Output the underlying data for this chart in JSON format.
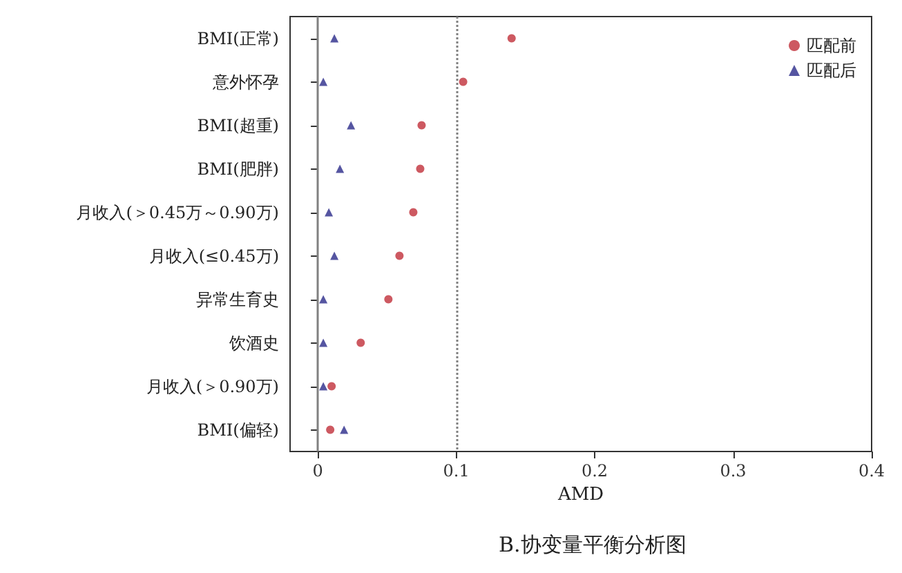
{
  "chart_data": {
    "type": "scatter",
    "title": "B.协变量平衡分析图",
    "xlabel": "AMD",
    "categories": [
      "BMI(正常)",
      "意外怀孕",
      "BMI(超重)",
      "BMI(肥胖)",
      "月收入(＞0.45万～0.90万)",
      "月收入(≤0.45万)",
      "异常生育史",
      "饮酒史",
      "月收入(＞0.90万)",
      "BMI(偏轻)"
    ],
    "series": [
      {
        "name": "匹配前",
        "color": "#c0303a",
        "marker": "circle",
        "values": [
          0.14,
          0.105,
          0.075,
          0.074,
          0.069,
          0.059,
          0.051,
          0.031,
          0.01,
          0.009
        ]
      },
      {
        "name": "匹配后",
        "color": "#2a2a8a",
        "marker": "triangle",
        "values": [
          0.012,
          0.004,
          0.024,
          0.016,
          0.008,
          0.012,
          0.004,
          0.004,
          0.004,
          0.019
        ]
      }
    ],
    "xlim": [
      -0.02,
      0.4
    ],
    "xticks": [
      0,
      0.1,
      0.2,
      0.3,
      0.4
    ],
    "ref_lines": [
      {
        "axis": "x",
        "value": 0,
        "color": "#808080",
        "line_style": "solid"
      },
      {
        "axis": "x",
        "value": 0.1,
        "color": "#808080",
        "line_style": "dotted"
      }
    ],
    "grid": false,
    "legend": "top right",
    "orientation": "horizontal"
  }
}
